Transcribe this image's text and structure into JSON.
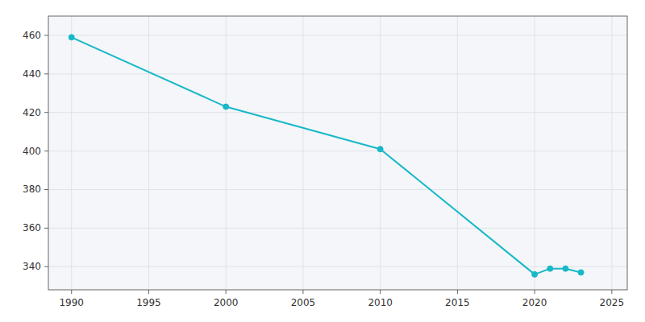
{
  "chart_data": {
    "type": "line",
    "x": [
      1990,
      2000,
      2010,
      2020,
      2021,
      2022,
      2023
    ],
    "values": [
      459,
      423,
      401,
      336,
      339,
      339,
      337
    ],
    "color": "#17b8c8",
    "marker": "circle",
    "xlim": [
      1988.5,
      2026
    ],
    "ylim": [
      328,
      470
    ],
    "xticks": [
      1990,
      1995,
      2000,
      2005,
      2010,
      2015,
      2020,
      2025
    ],
    "yticks": [
      340,
      360,
      380,
      400,
      420,
      440,
      460
    ],
    "grid": true
  }
}
